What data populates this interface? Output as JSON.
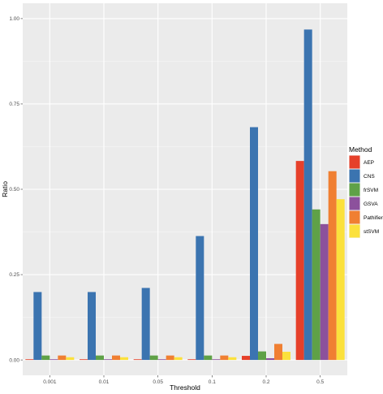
{
  "chart_data": {
    "type": "bar",
    "categories": [
      "0.001",
      "0.01",
      "0.05",
      "0.1",
      "0.2",
      "0.5"
    ],
    "series": [
      {
        "name": "AEP",
        "color": "#E6402A",
        "values": [
          0.002,
          0.002,
          0.002,
          0.002,
          0.012,
          0.583
        ]
      },
      {
        "name": "CNS",
        "color": "#3B74B0",
        "values": [
          0.199,
          0.199,
          0.211,
          0.363,
          0.682,
          0.968
        ]
      },
      {
        "name": "frSVM",
        "color": "#5FA147",
        "values": [
          0.013,
          0.013,
          0.013,
          0.013,
          0.025,
          0.441
        ]
      },
      {
        "name": "GSVA",
        "color": "#8C519C",
        "values": [
          0.002,
          0.002,
          0.002,
          0.002,
          0.005,
          0.398
        ]
      },
      {
        "name": "Pathifier",
        "color": "#F07F32",
        "values": [
          0.013,
          0.013,
          0.013,
          0.013,
          0.047,
          0.553
        ]
      },
      {
        "name": "stSVM",
        "color": "#FBE13C",
        "values": [
          0.008,
          0.008,
          0.008,
          0.008,
          0.024,
          0.471
        ]
      }
    ],
    "xlabel": "Threshold",
    "ylabel": "Ratio",
    "ylim": [
      0,
      1
    ],
    "yticks": [
      "0.00",
      "0.25",
      "0.50",
      "0.75",
      "1.00"
    ],
    "legend_title": "Method",
    "legend_position": "right",
    "grid": true,
    "panel_background": "#EBEBEB"
  }
}
